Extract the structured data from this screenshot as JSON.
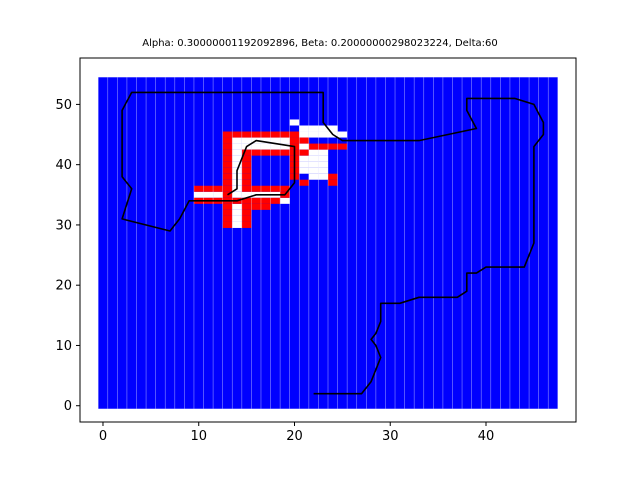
{
  "chart_data": {
    "type": "heatmap",
    "title": "Alpha: 0.30000001192092896, Beta: 0.20000000298023224, Delta:60",
    "xlabel": "",
    "ylabel": "",
    "xlim": [
      -2.4,
      49.4
    ],
    "ylim": [
      -2.7,
      57.7
    ],
    "x_ticks": [
      0,
      10,
      20,
      30,
      40
    ],
    "y_ticks": [
      0,
      10,
      20,
      30,
      40,
      50
    ],
    "grid": false,
    "colors": {
      "free": "#0000ff",
      "obstacle": "#ff0000",
      "unexplored": "#ffffff",
      "path": "#000000"
    },
    "grid_extent": {
      "x": [
        0,
        47
      ],
      "y": [
        0,
        54
      ]
    },
    "obstacle_cells": [
      [
        13,
        45
      ],
      [
        14,
        45
      ],
      [
        15,
        45
      ],
      [
        16,
        45
      ],
      [
        17,
        45
      ],
      [
        18,
        45
      ],
      [
        19,
        45
      ],
      [
        20,
        45
      ],
      [
        13,
        44
      ],
      [
        20,
        44
      ],
      [
        13,
        43
      ],
      [
        20,
        43
      ],
      [
        13,
        42
      ],
      [
        15,
        42
      ],
      [
        16,
        42
      ],
      [
        17,
        42
      ],
      [
        18,
        42
      ],
      [
        19,
        42
      ],
      [
        20,
        42
      ],
      [
        13,
        41
      ],
      [
        15,
        41
      ],
      [
        20,
        41
      ],
      [
        13,
        40
      ],
      [
        15,
        40
      ],
      [
        20,
        40
      ],
      [
        13,
        39
      ],
      [
        15,
        39
      ],
      [
        20,
        39
      ],
      [
        13,
        38
      ],
      [
        15,
        38
      ],
      [
        20,
        38
      ],
      [
        13,
        37
      ],
      [
        15,
        37
      ],
      [
        21,
        37
      ],
      [
        10,
        36
      ],
      [
        11,
        36
      ],
      [
        12,
        36
      ],
      [
        13,
        36
      ],
      [
        15,
        36
      ],
      [
        16,
        36
      ],
      [
        17,
        36
      ],
      [
        18,
        36
      ],
      [
        19,
        36
      ],
      [
        13,
        35
      ],
      [
        19,
        35
      ],
      [
        10,
        34
      ],
      [
        11,
        34
      ],
      [
        12,
        34
      ],
      [
        13,
        34
      ],
      [
        14,
        34
      ],
      [
        15,
        34
      ],
      [
        16,
        34
      ],
      [
        17,
        34
      ],
      [
        18,
        34
      ],
      [
        13,
        33
      ],
      [
        15,
        33
      ],
      [
        16,
        33
      ],
      [
        17,
        33
      ],
      [
        13,
        32
      ],
      [
        15,
        32
      ],
      [
        13,
        31
      ],
      [
        15,
        31
      ],
      [
        13,
        30
      ],
      [
        15,
        30
      ],
      [
        21,
        44
      ],
      [
        22,
        43
      ],
      [
        23,
        43
      ],
      [
        24,
        43
      ],
      [
        25,
        43
      ],
      [
        24,
        38
      ],
      [
        24,
        37
      ],
      [
        21,
        42
      ]
    ],
    "unexplored_cells": [
      [
        20,
        47
      ],
      [
        21,
        46
      ],
      [
        22,
        46
      ],
      [
        23,
        46
      ],
      [
        24,
        46
      ],
      [
        22,
        45
      ],
      [
        23,
        45
      ],
      [
        24,
        45
      ],
      [
        25,
        45
      ],
      [
        14,
        44
      ],
      [
        15,
        44
      ],
      [
        16,
        44
      ],
      [
        17,
        44
      ],
      [
        18,
        44
      ],
      [
        19,
        44
      ],
      [
        21,
        45
      ],
      [
        14,
        43
      ],
      [
        15,
        43
      ],
      [
        16,
        43
      ],
      [
        17,
        43
      ],
      [
        18,
        43
      ],
      [
        19,
        43
      ],
      [
        14,
        42
      ],
      [
        14,
        41
      ],
      [
        14,
        40
      ],
      [
        14,
        39
      ],
      [
        14,
        38
      ],
      [
        14,
        37
      ],
      [
        14,
        36
      ],
      [
        21,
        43
      ],
      [
        21,
        41
      ],
      [
        22,
        42
      ],
      [
        22,
        41
      ],
      [
        23,
        42
      ],
      [
        23,
        41
      ],
      [
        23,
        40
      ],
      [
        21,
        40
      ],
      [
        22,
        40
      ],
      [
        21,
        39
      ],
      [
        22,
        39
      ],
      [
        23,
        39
      ],
      [
        22,
        38
      ],
      [
        23,
        38
      ],
      [
        10,
        35
      ],
      [
        11,
        35
      ],
      [
        12,
        35
      ],
      [
        14,
        35
      ],
      [
        15,
        35
      ],
      [
        16,
        35
      ],
      [
        17,
        35
      ],
      [
        18,
        35
      ],
      [
        19,
        34
      ],
      [
        14,
        33
      ],
      [
        14,
        32
      ],
      [
        14,
        31
      ],
      [
        14,
        30
      ]
    ],
    "path": {
      "name": "",
      "points": [
        [
          22,
          2
        ],
        [
          27,
          2
        ],
        [
          28,
          4
        ],
        [
          28.5,
          6
        ],
        [
          29,
          8
        ],
        [
          28.5,
          10
        ],
        [
          28,
          11
        ],
        [
          28.5,
          12
        ],
        [
          29,
          14
        ],
        [
          29,
          17
        ],
        [
          31,
          17
        ],
        [
          33,
          18
        ],
        [
          36,
          18
        ],
        [
          37,
          18
        ],
        [
          38,
          19
        ],
        [
          38,
          22
        ],
        [
          39,
          22
        ],
        [
          40,
          23
        ],
        [
          42,
          23
        ],
        [
          44,
          23
        ],
        [
          45,
          27
        ],
        [
          45,
          43
        ],
        [
          46,
          45
        ],
        [
          46,
          47
        ],
        [
          45,
          50
        ],
        [
          43,
          51
        ],
        [
          38,
          51
        ],
        [
          38,
          49
        ],
        [
          39,
          46
        ],
        [
          33,
          44
        ],
        [
          25,
          44
        ],
        [
          24,
          45
        ],
        [
          23,
          47
        ],
        [
          23,
          52
        ],
        [
          3,
          52
        ],
        [
          2,
          49
        ],
        [
          2,
          38
        ],
        [
          3,
          36
        ],
        [
          2,
          31
        ],
        [
          7,
          29
        ],
        [
          8,
          31
        ],
        [
          9,
          34
        ],
        [
          14,
          34
        ],
        [
          16,
          35
        ],
        [
          19,
          35
        ],
        [
          20,
          37
        ],
        [
          20,
          43
        ],
        [
          16,
          44
        ],
        [
          15,
          43
        ],
        [
          14,
          39
        ],
        [
          14,
          36
        ],
        [
          13,
          35
        ]
      ]
    }
  }
}
